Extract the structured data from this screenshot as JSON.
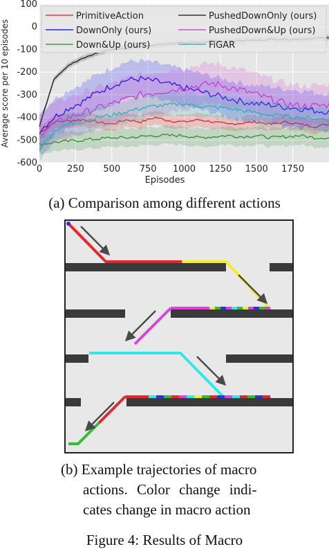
{
  "chart_data": {
    "type": "line",
    "xlabel": "Episodes",
    "ylabel": "Average score per 10 episodes",
    "xlim": [
      0,
      2000
    ],
    "ylim": [
      -600,
      100
    ],
    "xticks": [
      0,
      250,
      500,
      750,
      1000,
      1250,
      1500,
      1750
    ],
    "yticks": [
      100,
      0,
      -100,
      -200,
      -300,
      -400,
      -500,
      -600
    ],
    "grid": true,
    "legend_position": "top",
    "series": [
      {
        "name": "PrimitiveAction",
        "color": "#e41a1c",
        "x": [
          0,
          100,
          200,
          300,
          400,
          500,
          600,
          700,
          800,
          900,
          1000,
          1100,
          1200,
          1300,
          1400,
          1500,
          1600,
          1700,
          1800,
          1900,
          2000
        ],
        "y": [
          -470,
          -420,
          -415,
          -410,
          -420,
          -430,
          -410,
          -420,
          -400,
          -415,
          -420,
          -410,
          -420,
          -430,
          -425,
          -420,
          -430,
          -420,
          -430,
          -440,
          -430
        ],
        "band": 30
      },
      {
        "name": "DownOnly (ours)",
        "color": "#0000ff",
        "x": [
          0,
          100,
          200,
          300,
          400,
          500,
          600,
          700,
          800,
          900,
          1000,
          1100,
          1200,
          1300,
          1400,
          1500,
          1600,
          1700,
          1800,
          1900,
          2000
        ],
        "y": [
          -460,
          -400,
          -360,
          -330,
          -290,
          -260,
          -235,
          -230,
          -240,
          -255,
          -270,
          -285,
          -300,
          -315,
          -330,
          -340,
          -345,
          -355,
          -360,
          -370,
          -375
        ],
        "band": 80
      },
      {
        "name": "Down&Up (ours)",
        "color": "#228b22",
        "x": [
          0,
          100,
          200,
          300,
          400,
          500,
          600,
          700,
          800,
          900,
          1000,
          1100,
          1200,
          1300,
          1400,
          1500,
          1600,
          1700,
          1800,
          1900,
          2000
        ],
        "y": [
          -520,
          -510,
          -505,
          -500,
          -495,
          -490,
          -490,
          -485,
          -480,
          -480,
          -480,
          -490,
          -485,
          -480,
          -485,
          -480,
          -490,
          -485,
          -480,
          -490,
          -490
        ],
        "band": 40
      },
      {
        "name": "PushedDownOnly (ours)",
        "color": "#111111",
        "x": [
          0,
          100,
          200,
          300,
          400,
          500,
          600,
          700,
          800,
          900,
          1000,
          1100,
          1200,
          1300,
          1400,
          1500,
          1600,
          1700,
          1800,
          1900,
          2000
        ],
        "y": [
          -440,
          -230,
          -170,
          -140,
          -115,
          -100,
          -95,
          -85,
          -80,
          -75,
          -70,
          -70,
          -65,
          -65,
          -60,
          -60,
          -55,
          -55,
          -55,
          -50,
          -50
        ],
        "band": 12
      },
      {
        "name": "PushedDown&Up (ours)",
        "color": "#cc33cc",
        "x": [
          0,
          100,
          200,
          300,
          400,
          500,
          600,
          700,
          800,
          900,
          1000,
          1100,
          1200,
          1300,
          1400,
          1500,
          1600,
          1700,
          1800,
          1900,
          2000
        ],
        "y": [
          -470,
          -430,
          -400,
          -380,
          -360,
          -340,
          -320,
          -300,
          -290,
          -280,
          -270,
          -260,
          -250,
          -265,
          -280,
          -300,
          -320,
          -340,
          -350,
          -350,
          -345
        ],
        "band": 90
      },
      {
        "name": "FiGAR",
        "color": "#20b2aa",
        "x": [
          0,
          100,
          200,
          300,
          400,
          500,
          600,
          700,
          800,
          900,
          1000,
          1100,
          1200,
          1300,
          1400,
          1500,
          1600,
          1700,
          1800,
          1900,
          2000
        ],
        "y": [
          -540,
          -460,
          -430,
          -420,
          -400,
          -390,
          -375,
          -360,
          -350,
          -345,
          -340,
          -350,
          -355,
          -360,
          -370,
          -380,
          -390,
          -395,
          -400,
          -405,
          -410
        ],
        "band": 50
      }
    ]
  },
  "captions": {
    "a": "(a) Comparison among different actions",
    "b_line1": "(b) Example trajectories of macro",
    "b_line2": "actions. Color change indi-",
    "b_line3": "cates change in macro action",
    "footer": "Figure 4: Results of Macro"
  },
  "trajectory_colors": {
    "red": "#e8262a",
    "yellow": "#f0f02a",
    "magenta": "#e040e0",
    "green": "#30c030",
    "cyan": "#30e8e8",
    "blue": "#3030e0",
    "arrow": "#4a4a4a",
    "platform": "#3a3a3a"
  }
}
